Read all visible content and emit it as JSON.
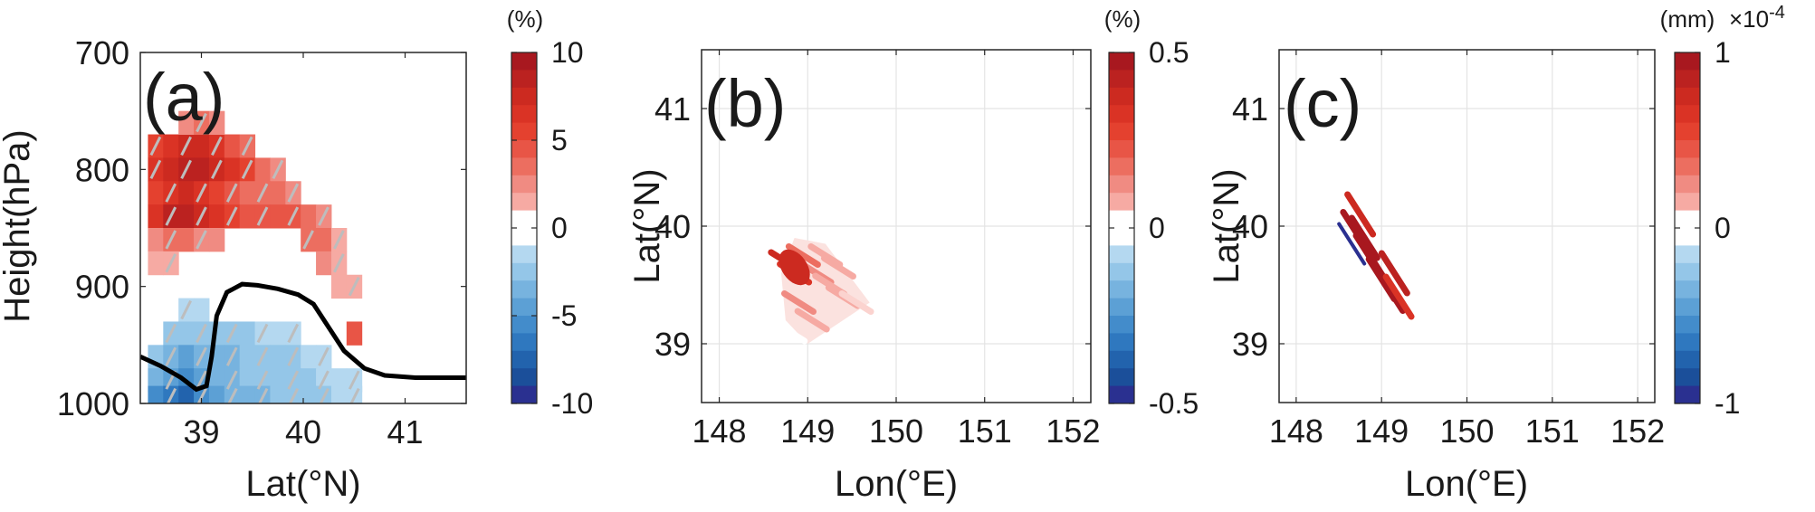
{
  "chart_data": [
    {
      "type": "heatmap",
      "panel_label": "(a)",
      "xlabel": "Lat(°N)",
      "ylabel": "Height(hPa)",
      "xlim": [
        38.4,
        41.6
      ],
      "ylim": [
        700,
        1000
      ],
      "y_reversed": true,
      "xticks": [
        "39",
        "40",
        "41"
      ],
      "yticks": [
        "700",
        "800",
        "900",
        "1000"
      ],
      "grid": false,
      "colorbar": {
        "unit": "(%)",
        "min": -10,
        "max": 10,
        "ticks": [
          "10",
          "5",
          "0",
          "-5",
          "-10"
        ]
      },
      "cells": [
        {
          "lat": 38.55,
          "p": 780,
          "v": 5
        },
        {
          "lat": 38.7,
          "p": 780,
          "v": 6
        },
        {
          "lat": 38.85,
          "p": 780,
          "v": 7
        },
        {
          "lat": 39.0,
          "p": 780,
          "v": 7
        },
        {
          "lat": 39.15,
          "p": 780,
          "v": 6
        },
        {
          "lat": 39.3,
          "p": 780,
          "v": 4
        },
        {
          "lat": 39.45,
          "p": 780,
          "v": 3
        },
        {
          "lat": 38.85,
          "p": 760,
          "v": 2
        },
        {
          "lat": 39.0,
          "p": 760,
          "v": 3
        },
        {
          "lat": 39.15,
          "p": 760,
          "v": 2
        },
        {
          "lat": 38.55,
          "p": 800,
          "v": 6
        },
        {
          "lat": 38.7,
          "p": 800,
          "v": 7
        },
        {
          "lat": 38.85,
          "p": 800,
          "v": 8
        },
        {
          "lat": 39.0,
          "p": 800,
          "v": 8
        },
        {
          "lat": 39.15,
          "p": 800,
          "v": 7
        },
        {
          "lat": 39.3,
          "p": 800,
          "v": 6
        },
        {
          "lat": 39.45,
          "p": 800,
          "v": 5
        },
        {
          "lat": 39.6,
          "p": 800,
          "v": 3
        },
        {
          "lat": 39.75,
          "p": 800,
          "v": 2
        },
        {
          "lat": 38.55,
          "p": 820,
          "v": 5
        },
        {
          "lat": 38.7,
          "p": 820,
          "v": 6
        },
        {
          "lat": 38.85,
          "p": 820,
          "v": 7
        },
        {
          "lat": 39.0,
          "p": 820,
          "v": 6
        },
        {
          "lat": 39.15,
          "p": 820,
          "v": 5
        },
        {
          "lat": 39.3,
          "p": 820,
          "v": 4
        },
        {
          "lat": 39.45,
          "p": 820,
          "v": 3
        },
        {
          "lat": 39.6,
          "p": 820,
          "v": 3
        },
        {
          "lat": 39.75,
          "p": 820,
          "v": 3
        },
        {
          "lat": 39.9,
          "p": 820,
          "v": 2
        },
        {
          "lat": 38.55,
          "p": 840,
          "v": 6
        },
        {
          "lat": 38.7,
          "p": 840,
          "v": 8
        },
        {
          "lat": 38.85,
          "p": 840,
          "v": 8
        },
        {
          "lat": 39.0,
          "p": 840,
          "v": 7
        },
        {
          "lat": 39.15,
          "p": 840,
          "v": 6
        },
        {
          "lat": 39.3,
          "p": 840,
          "v": 5
        },
        {
          "lat": 39.45,
          "p": 840,
          "v": 4
        },
        {
          "lat": 39.6,
          "p": 840,
          "v": 4
        },
        {
          "lat": 39.75,
          "p": 840,
          "v": 4
        },
        {
          "lat": 39.9,
          "p": 840,
          "v": 4
        },
        {
          "lat": 40.05,
          "p": 840,
          "v": 3
        },
        {
          "lat": 40.2,
          "p": 840,
          "v": 2
        },
        {
          "lat": 38.55,
          "p": 860,
          "v": 2
        },
        {
          "lat": 38.7,
          "p": 860,
          "v": 3
        },
        {
          "lat": 38.85,
          "p": 860,
          "v": 3
        },
        {
          "lat": 39.0,
          "p": 860,
          "v": 2
        },
        {
          "lat": 39.15,
          "p": 860,
          "v": 2
        },
        {
          "lat": 40.05,
          "p": 860,
          "v": 3
        },
        {
          "lat": 40.2,
          "p": 860,
          "v": 3
        },
        {
          "lat": 40.35,
          "p": 860,
          "v": 1
        },
        {
          "lat": 38.55,
          "p": 880,
          "v": 1
        },
        {
          "lat": 38.7,
          "p": 880,
          "v": 1
        },
        {
          "lat": 40.2,
          "p": 880,
          "v": 2
        },
        {
          "lat": 40.35,
          "p": 880,
          "v": 1
        },
        {
          "lat": 40.35,
          "p": 900,
          "v": 1
        },
        {
          "lat": 40.5,
          "p": 900,
          "v": 1
        },
        {
          "lat": 40.5,
          "p": 940,
          "v": 4
        },
        {
          "lat": 38.85,
          "p": 920,
          "v": -1
        },
        {
          "lat": 39.0,
          "p": 920,
          "v": -1
        },
        {
          "lat": 38.7,
          "p": 940,
          "v": -2
        },
        {
          "lat": 38.85,
          "p": 940,
          "v": -2
        },
        {
          "lat": 39.0,
          "p": 940,
          "v": -2
        },
        {
          "lat": 39.15,
          "p": 940,
          "v": -2
        },
        {
          "lat": 39.3,
          "p": 940,
          "v": -2
        },
        {
          "lat": 39.45,
          "p": 940,
          "v": -2
        },
        {
          "lat": 39.6,
          "p": 940,
          "v": -1
        },
        {
          "lat": 39.75,
          "p": 940,
          "v": -1
        },
        {
          "lat": 39.9,
          "p": 940,
          "v": -1
        },
        {
          "lat": 38.55,
          "p": 960,
          "v": -2
        },
        {
          "lat": 38.7,
          "p": 960,
          "v": -3
        },
        {
          "lat": 38.85,
          "p": 960,
          "v": -4
        },
        {
          "lat": 39.0,
          "p": 960,
          "v": -3
        },
        {
          "lat": 39.15,
          "p": 960,
          "v": -3
        },
        {
          "lat": 39.3,
          "p": 960,
          "v": -3
        },
        {
          "lat": 39.45,
          "p": 960,
          "v": -2
        },
        {
          "lat": 39.6,
          "p": 960,
          "v": -2
        },
        {
          "lat": 39.75,
          "p": 960,
          "v": -2
        },
        {
          "lat": 39.9,
          "p": 960,
          "v": -2
        },
        {
          "lat": 40.05,
          "p": 960,
          "v": -1
        },
        {
          "lat": 40.2,
          "p": 960,
          "v": -1
        },
        {
          "lat": 38.55,
          "p": 980,
          "v": -3
        },
        {
          "lat": 38.7,
          "p": 980,
          "v": -4
        },
        {
          "lat": 38.85,
          "p": 980,
          "v": -5
        },
        {
          "lat": 39.0,
          "p": 980,
          "v": -4
        },
        {
          "lat": 39.15,
          "p": 980,
          "v": -3
        },
        {
          "lat": 39.3,
          "p": 980,
          "v": -3
        },
        {
          "lat": 39.45,
          "p": 980,
          "v": -2
        },
        {
          "lat": 39.6,
          "p": 980,
          "v": -2
        },
        {
          "lat": 39.75,
          "p": 980,
          "v": -2
        },
        {
          "lat": 39.9,
          "p": 980,
          "v": -2
        },
        {
          "lat": 40.05,
          "p": 980,
          "v": -2
        },
        {
          "lat": 40.2,
          "p": 980,
          "v": -1
        },
        {
          "lat": 40.35,
          "p": 980,
          "v": -1
        },
        {
          "lat": 40.5,
          "p": 980,
          "v": -1
        },
        {
          "lat": 38.55,
          "p": 995,
          "v": -5
        },
        {
          "lat": 38.7,
          "p": 995,
          "v": -6
        },
        {
          "lat": 38.85,
          "p": 995,
          "v": -7
        },
        {
          "lat": 39.0,
          "p": 995,
          "v": -5
        },
        {
          "lat": 39.15,
          "p": 995,
          "v": -4
        },
        {
          "lat": 39.3,
          "p": 995,
          "v": -3
        },
        {
          "lat": 39.45,
          "p": 995,
          "v": -3
        },
        {
          "lat": 39.6,
          "p": 995,
          "v": -3
        },
        {
          "lat": 39.75,
          "p": 995,
          "v": -2
        },
        {
          "lat": 39.9,
          "p": 995,
          "v": -2
        },
        {
          "lat": 40.05,
          "p": 995,
          "v": -2
        },
        {
          "lat": 40.2,
          "p": 995,
          "v": -2
        },
        {
          "lat": 40.35,
          "p": 995,
          "v": -1
        },
        {
          "lat": 40.5,
          "p": 995,
          "v": -1
        }
      ],
      "black_line": {
        "lat": [
          38.4,
          38.6,
          38.8,
          38.95,
          39.05,
          39.1,
          39.15,
          39.25,
          39.4,
          39.55,
          39.75,
          39.95,
          40.1,
          40.25,
          40.4,
          40.6,
          40.8,
          41.1,
          41.6
        ],
        "p": [
          960,
          968,
          978,
          988,
          985,
          960,
          925,
          905,
          898,
          899,
          902,
          907,
          915,
          935,
          955,
          970,
          976,
          978,
          978
        ]
      }
    },
    {
      "type": "heatmap",
      "panel_label": "(b)",
      "xlabel": "Lon(°E)",
      "ylabel": "Lat(°N)",
      "xlim": [
        147.8,
        152.2
      ],
      "ylim": [
        38.5,
        41.5
      ],
      "xticks": [
        "148",
        "149",
        "150",
        "151",
        "152"
      ],
      "yticks": [
        "39",
        "40",
        "41"
      ],
      "grid": true,
      "colorbar": {
        "unit": "(%)",
        "min": -0.5,
        "max": 0.5,
        "ticks": [
          "0.5",
          "0",
          "-0.5"
        ]
      },
      "patch": {
        "lon_range": [
          148.7,
          149.7
        ],
        "lat_range": [
          39.0,
          39.9
        ],
        "peak": {
          "lon": 148.85,
          "lat": 39.65,
          "value": 0.35
        }
      },
      "streaks": [
        {
          "lon": 148.75,
          "lat": 39.7,
          "v": 0.35
        },
        {
          "lon": 148.85,
          "lat": 39.6,
          "v": 0.3
        },
        {
          "lon": 148.95,
          "lat": 39.75,
          "v": 0.15
        },
        {
          "lon": 149.1,
          "lat": 39.6,
          "v": 0.12
        },
        {
          "lon": 149.25,
          "lat": 39.5,
          "v": 0.08
        },
        {
          "lon": 149.4,
          "lat": 39.4,
          "v": 0.05
        },
        {
          "lon": 149.55,
          "lat": 39.35,
          "v": 0.04
        },
        {
          "lon": 148.9,
          "lat": 39.35,
          "v": 0.1
        },
        {
          "lon": 149.05,
          "lat": 39.2,
          "v": 0.05
        },
        {
          "lon": 148.8,
          "lat": 39.1,
          "v": 0.03
        },
        {
          "lon": 149.2,
          "lat": 39.75,
          "v": 0.06
        },
        {
          "lon": 149.35,
          "lat": 39.65,
          "v": 0.05
        }
      ]
    },
    {
      "type": "heatmap",
      "panel_label": "(c)",
      "xlabel": "Lon(°E)",
      "ylabel": "Lat(°N)",
      "xlim": [
        147.8,
        152.2
      ],
      "ylim": [
        38.5,
        41.5
      ],
      "xticks": [
        "148",
        "149",
        "150",
        "151",
        "152"
      ],
      "yticks": [
        "39",
        "40",
        "41"
      ],
      "grid": true,
      "colorbar": {
        "unit": "(mm)",
        "scale": "×10",
        "scale_exp": "-4",
        "min": -1,
        "max": 1,
        "ticks": [
          "1",
          "0",
          "-1"
        ]
      },
      "streaks": [
        {
          "lon": 148.7,
          "lat": 39.95,
          "v": 1
        },
        {
          "lon": 148.8,
          "lat": 39.9,
          "v": 1
        },
        {
          "lon": 148.85,
          "lat": 39.75,
          "v": 1
        },
        {
          "lon": 148.95,
          "lat": 39.65,
          "v": 1
        },
        {
          "lon": 149.0,
          "lat": 39.55,
          "v": 1
        },
        {
          "lon": 149.1,
          "lat": 39.45,
          "v": 1
        },
        {
          "lon": 149.15,
          "lat": 39.6,
          "v": 0.8
        },
        {
          "lon": 148.75,
          "lat": 40.1,
          "v": 0.7
        },
        {
          "lon": 149.2,
          "lat": 39.4,
          "v": 0.6
        },
        {
          "lon": 148.65,
          "lat": 39.85,
          "v": -1
        }
      ]
    }
  ]
}
